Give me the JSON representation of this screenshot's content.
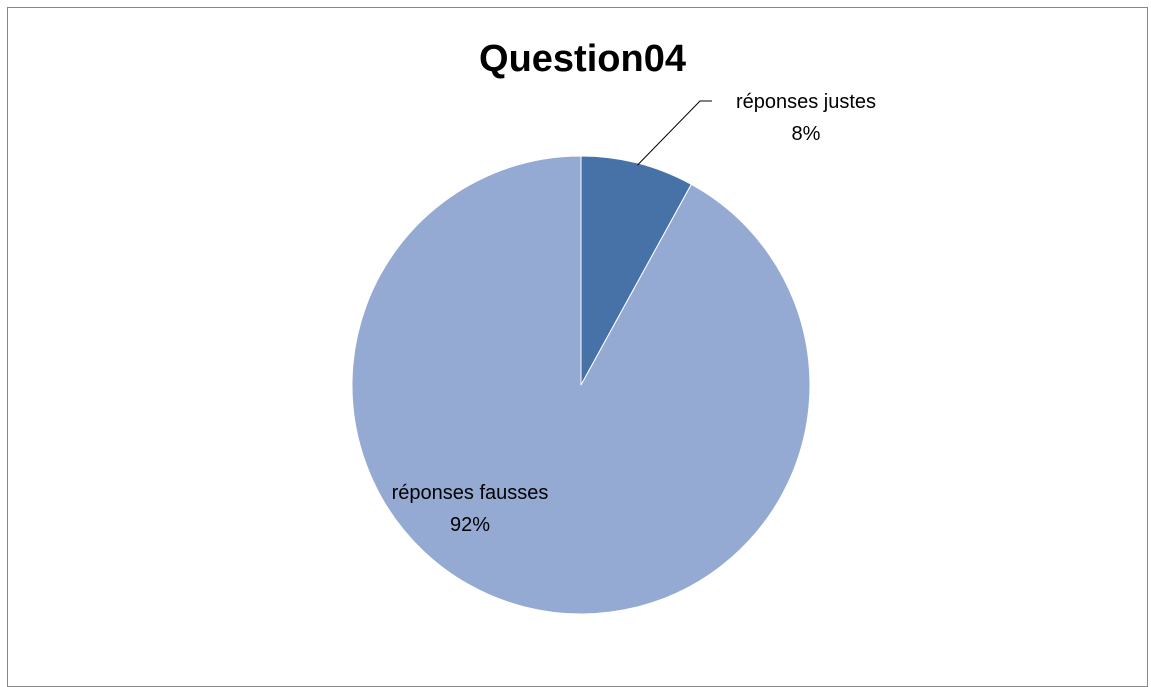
{
  "chart_data": {
    "type": "pie",
    "title": "Question04",
    "slices": [
      {
        "label": "réponses justes",
        "value": 8,
        "percent_label": "8%",
        "color": "#4672A8"
      },
      {
        "label": "réponses fausses",
        "value": 92,
        "percent_label": "92%",
        "color": "#95AAD2"
      }
    ],
    "start_angle_deg": 0,
    "direction": "clockwise",
    "legend": "none",
    "data_labels": "category-name-and-percentage"
  }
}
